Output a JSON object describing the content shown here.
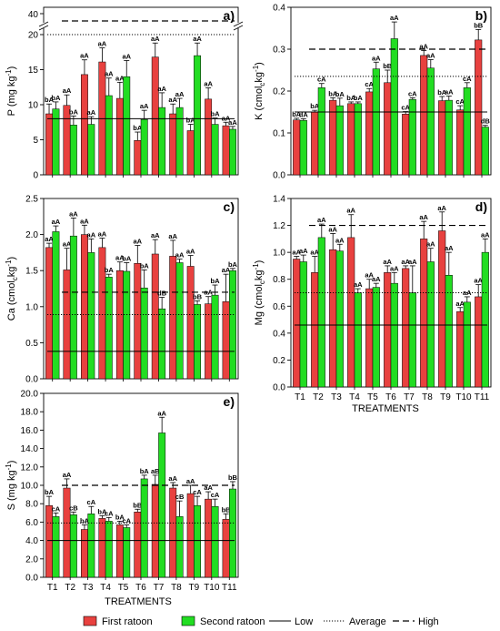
{
  "figure": {
    "xlabel": "TREATMENTS",
    "legend": [
      {
        "key": "first",
        "label": "First ratoon",
        "kind": "bar",
        "color": "#e8413f"
      },
      {
        "key": "second",
        "label": "Second ratoon",
        "kind": "bar",
        "color": "#22dd22"
      },
      {
        "key": "low",
        "label": "Low",
        "kind": "line",
        "dash": "solid"
      },
      {
        "key": "avg",
        "label": "Average",
        "kind": "line",
        "dash": "dotted"
      },
      {
        "key": "high",
        "label": "High",
        "kind": "line",
        "dash": "dashed"
      }
    ]
  },
  "chart_data": [
    {
      "id": "a",
      "panel_label": "a)",
      "type": "bar",
      "ylabel": "P (mg kg-1)",
      "categories": [
        "T1",
        "T2",
        "T3",
        "T4",
        "T5",
        "T6",
        "T7",
        "T8",
        "T9",
        "T10",
        "T11"
      ],
      "ylim": [
        0,
        20
      ],
      "yticks": [
        "0",
        "5",
        "10",
        "15",
        "20"
      ],
      "axis_break": {
        "upper_tick": "40",
        "upper_value": 40
      },
      "series": [
        {
          "name": "First ratoon",
          "values": [
            8.7,
            9.9,
            14.3,
            16.1,
            10.9,
            4.9,
            16.8,
            8.7,
            6.3,
            10.8,
            7.0
          ],
          "errors": [
            1.4,
            1.5,
            2.1,
            2.0,
            2.3,
            1.2,
            2.0,
            1.4,
            0.9,
            1.6,
            0.5
          ],
          "labels": [
            "bA",
            "aA",
            "aA",
            "aA",
            "aA",
            "bA",
            "aA",
            "aA",
            "bA",
            "aA",
            "aA"
          ]
        },
        {
          "name": "Second ratoon",
          "values": [
            9.4,
            7.1,
            7.2,
            11.3,
            14.0,
            7.9,
            9.6,
            9.6,
            17.0,
            7.2,
            6.5
          ],
          "errors": [
            1.0,
            1.3,
            1.1,
            2.5,
            2.3,
            1.3,
            2.1,
            1.3,
            1.8,
            0.9,
            0.4
          ],
          "labels": [
            "bA",
            "bA",
            "aA",
            "aA",
            "aA",
            "aA",
            "aA",
            "aA",
            "aA",
            "bA",
            "aA"
          ]
        }
      ],
      "reference_lines": {
        "low": 8,
        "avg": 20,
        "high": 38
      }
    },
    {
      "id": "b",
      "panel_label": "b)",
      "type": "bar",
      "ylabel": "K (cmolc kg-1)",
      "categories": [
        "T1",
        "T2",
        "T3",
        "T4",
        "T5",
        "T6",
        "T7",
        "T8",
        "T9",
        "T10",
        "T11"
      ],
      "ylim": [
        0,
        0.4
      ],
      "yticks": [
        "0.0",
        "0.1",
        "0.2",
        "0.3",
        "0.4"
      ],
      "series": [
        {
          "name": "First ratoon",
          "values": [
            0.131,
            0.15,
            0.178,
            0.17,
            0.198,
            0.22,
            0.145,
            0.285,
            0.177,
            0.155,
            0.322
          ],
          "errors": [
            0.004,
            0.004,
            0.006,
            0.004,
            0.008,
            0.03,
            0.006,
            0.012,
            0.01,
            0.01,
            0.025
          ],
          "labels": [
            "bA",
            "bA",
            "bA",
            "bA",
            "cA",
            "bB",
            "cA",
            "aA",
            "bA",
            "cA",
            "bB"
          ]
        },
        {
          "name": "Second ratoon",
          "values": [
            0.13,
            0.208,
            0.165,
            0.17,
            0.253,
            0.325,
            0.18,
            0.255,
            0.178,
            0.208,
            0.114
          ],
          "errors": [
            0.004,
            0.01,
            0.018,
            0.004,
            0.016,
            0.04,
            0.004,
            0.02,
            0.01,
            0.012,
            0.004
          ],
          "labels": [
            "dA",
            "cA",
            "bA",
            "bA",
            "aA",
            "aA",
            "cA",
            "aA",
            "aA",
            "cA",
            "dB"
          ]
        }
      ],
      "reference_lines": {
        "low": 0.15,
        "avg": 0.235,
        "high": 0.3
      }
    },
    {
      "id": "c",
      "panel_label": "c)",
      "type": "bar",
      "ylabel": "Ca (cmolc kg-1)",
      "categories": [
        "T1",
        "T2",
        "T3",
        "T4",
        "T5",
        "T6",
        "T7",
        "T8",
        "T9",
        "T10",
        "T11"
      ],
      "ylim": [
        0,
        2.5
      ],
      "yticks": [
        "0.0",
        "0.5",
        "1.0",
        "1.5",
        "2.0",
        "2.5"
      ],
      "series": [
        {
          "name": "First ratoon",
          "values": [
            1.82,
            1.51,
            2.0,
            1.82,
            1.5,
            1.6,
            1.73,
            1.7,
            1.56,
            1.04,
            1.07
          ],
          "errors": [
            0.06,
            0.3,
            0.13,
            0.13,
            0.12,
            0.25,
            0.2,
            0.22,
            0.15,
            0.1,
            0.38
          ],
          "labels": [
            "aA",
            "aA",
            "aA",
            "aA",
            "aA",
            "aA",
            "aA",
            "aA",
            "aA",
            "aA",
            "aA"
          ]
        },
        {
          "name": "Second ratoon",
          "values": [
            2.04,
            1.98,
            1.75,
            1.41,
            1.49,
            1.26,
            0.97,
            1.61,
            1.03,
            1.16,
            1.5
          ],
          "errors": [
            0.08,
            0.25,
            0.19,
            0.04,
            0.12,
            0.25,
            0.16,
            0.05,
            0.05,
            0.14,
            0.03
          ],
          "labels": [
            "aA",
            "aA",
            "aA",
            "bA",
            "bA",
            "bA",
            "dB",
            "aA",
            "bB",
            "bA",
            "bA"
          ]
        }
      ],
      "reference_lines": {
        "low": 0.38,
        "avg": 0.89,
        "high": 1.2
      }
    },
    {
      "id": "d",
      "panel_label": "d)",
      "type": "bar",
      "ylabel": "Mg (cmolc kg-1)",
      "categories": [
        "T1",
        "T2",
        "T3",
        "T4",
        "T5",
        "T6",
        "T7",
        "T8",
        "T9",
        "T10",
        "T11"
      ],
      "ylim": [
        0,
        1.4
      ],
      "yticks": [
        "0.0",
        "0.2",
        "0.4",
        "0.6",
        "0.8",
        "1.0",
        "1.2",
        "1.4"
      ],
      "series": [
        {
          "name": "First ratoon",
          "values": [
            0.95,
            0.85,
            1.02,
            1.11,
            0.73,
            0.85,
            0.88,
            1.1,
            1.16,
            0.56,
            0.67
          ],
          "errors": [
            0.02,
            0.12,
            0.12,
            0.17,
            0.07,
            0.05,
            0.02,
            0.13,
            0.14,
            0.03,
            0.09
          ],
          "labels": [
            "aA",
            "aA",
            "aA",
            "aA",
            "aA",
            "aA",
            "aA",
            "aA",
            "aA",
            "aA",
            "aA"
          ]
        },
        {
          "name": "Second ratoon",
          "values": [
            0.93,
            1.11,
            1.01,
            0.7,
            0.74,
            0.77,
            0.7,
            0.93,
            0.83,
            0.63,
            1.0
          ],
          "errors": [
            0.05,
            0.1,
            0.05,
            0.03,
            0.03,
            0.08,
            0.2,
            0.1,
            0.17,
            0.04,
            0.1
          ],
          "labels": [
            "aA",
            "aA",
            "aA",
            "aA",
            "aA",
            "aA",
            "aA",
            "aA",
            "aA",
            "aA",
            "aA"
          ]
        }
      ],
      "reference_lines": {
        "low": 0.46,
        "avg": 0.7,
        "high": 1.2
      }
    },
    {
      "id": "e",
      "panel_label": "e)",
      "type": "bar",
      "ylabel": "S (mg kg-1)",
      "categories": [
        "T1",
        "T2",
        "T3",
        "T4",
        "T5",
        "T6",
        "T7",
        "T8",
        "T9",
        "T10",
        "T11"
      ],
      "ylim": [
        0,
        20
      ],
      "yticks": [
        "0.0",
        "2.0",
        "4.0",
        "6.0",
        "8.0",
        "10.0",
        "12.0",
        "14.0",
        "16.0",
        "18.0",
        "20.0"
      ],
      "series": [
        {
          "name": "First ratoon",
          "values": [
            7.8,
            9.7,
            5.2,
            6.4,
            5.7,
            7.1,
            10.1,
            9.7,
            9.1,
            8.5,
            6.3
          ],
          "errors": [
            1.0,
            1.0,
            0.5,
            0.3,
            0.4,
            0.3,
            1.0,
            0.6,
            0.9,
            0.8,
            0.6
          ],
          "labels": [
            "bA",
            "aA",
            "bA",
            "bA",
            "bA",
            "bB",
            "aB",
            "aA",
            "aA",
            "aA",
            "bB"
          ]
        },
        {
          "name": "Second ratoon",
          "values": [
            6.6,
            6.8,
            6.9,
            6.1,
            5.4,
            10.7,
            15.7,
            6.6,
            7.8,
            7.7,
            9.6
          ],
          "errors": [
            0.4,
            0.3,
            0.8,
            0.4,
            0.3,
            0.4,
            1.7,
            1.7,
            1.0,
            0.8,
            0.8
          ],
          "labels": [
            "cA",
            "cB",
            "cA",
            "cA",
            "cA",
            "bA",
            "aA",
            "cB",
            "cA",
            "cA",
            "bB"
          ]
        }
      ],
      "reference_lines": {
        "low": 4.0,
        "avg": 5.9,
        "high": 10.0
      }
    }
  ]
}
